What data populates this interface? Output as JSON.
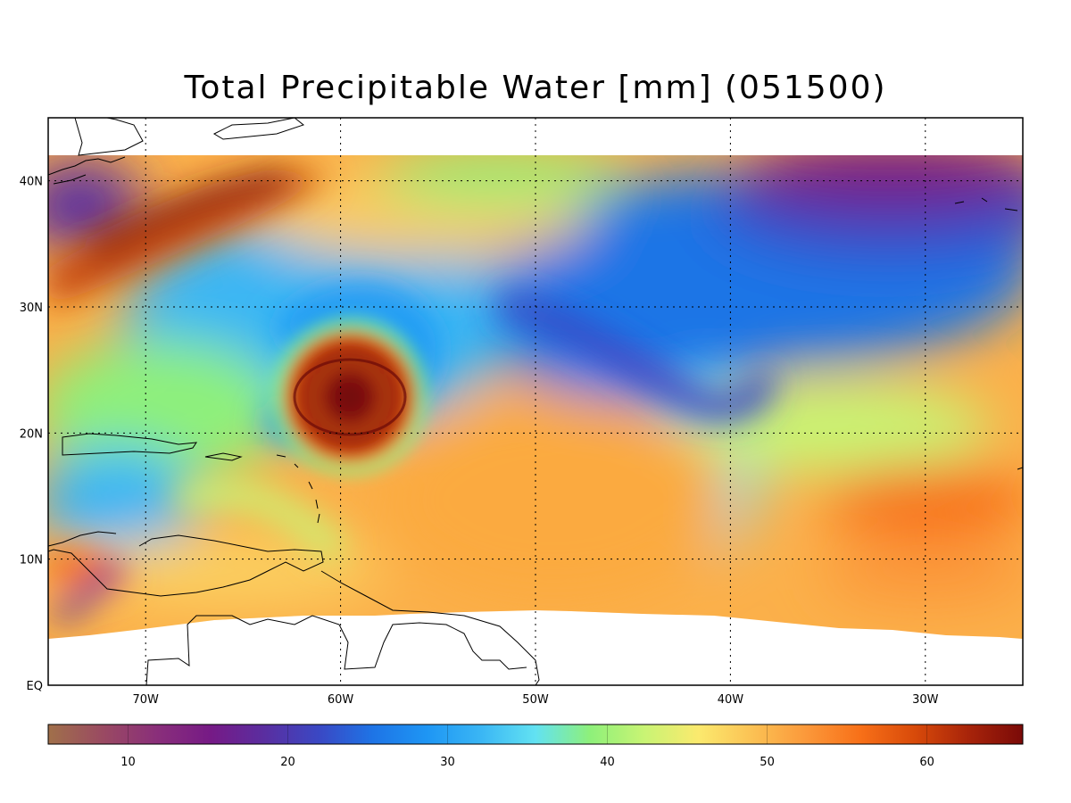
{
  "title": "Total Precipitable Water [mm]  (051500)",
  "map": {
    "lon_range": [
      -75,
      -25
    ],
    "lat_range": [
      0,
      45
    ],
    "data_lat_range": [
      3.8,
      42
    ],
    "gridlines": "dotted",
    "lon_ticks": [
      {
        "value": -70,
        "label": "70W"
      },
      {
        "value": -60,
        "label": "60W"
      },
      {
        "value": -50,
        "label": "50W"
      },
      {
        "value": -40,
        "label": "40W"
      },
      {
        "value": -30,
        "label": "30W"
      }
    ],
    "lat_ticks": [
      {
        "value": 0,
        "label": "EQ"
      },
      {
        "value": 10,
        "label": "10N"
      },
      {
        "value": 20,
        "label": "20N"
      },
      {
        "value": 30,
        "label": "30N"
      },
      {
        "value": 40,
        "label": "40N"
      }
    ],
    "features": [
      {
        "name": "hurricane-eye",
        "lon": -59.5,
        "lat": 22.5,
        "tpw_mm": 66
      },
      {
        "name": "dry-band",
        "lon": -45,
        "lat": 28,
        "tpw_mm": 22
      }
    ]
  },
  "colorbar": {
    "min": 5,
    "max": 66,
    "ticks": [
      {
        "value": 10,
        "label": "10"
      },
      {
        "value": 20,
        "label": "20"
      },
      {
        "value": 30,
        "label": "30"
      },
      {
        "value": 40,
        "label": "40"
      },
      {
        "value": 50,
        "label": "50"
      },
      {
        "value": 60,
        "label": "60"
      }
    ],
    "colors": [
      "#a0704a",
      "#9a4a62",
      "#8a2f7a",
      "#761a86",
      "#5a2ea0",
      "#3a48c4",
      "#1e74e6",
      "#1e96f4",
      "#3ab6f4",
      "#62e2f2",
      "#8ef07a",
      "#c8f474",
      "#fbea6e",
      "#fbc254",
      "#fb983a",
      "#f87018",
      "#d84a0a",
      "#a8240a",
      "#7a0a08"
    ]
  }
}
